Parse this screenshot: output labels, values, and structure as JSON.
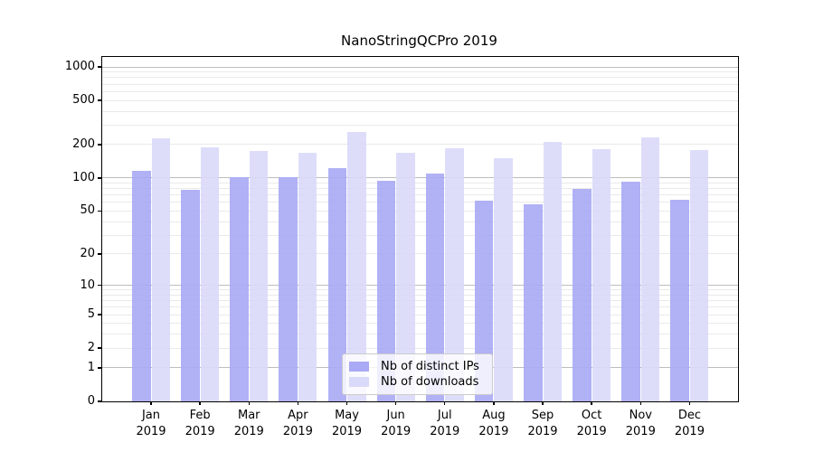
{
  "chart_data": {
    "type": "bar",
    "title": "NanoStringQCPro 2019",
    "categories": [
      "Jan 2019",
      "Feb 2019",
      "Mar 2019",
      "Apr 2019",
      "May 2019",
      "Jun 2019",
      "Jul 2019",
      "Aug 2019",
      "Sep 2019",
      "Oct 2019",
      "Nov 2019",
      "Dec 2019"
    ],
    "series": [
      {
        "name": "Nb of distinct IPs",
        "color": "#a9a9f5",
        "values": [
          115,
          78,
          101,
          101,
          123,
          95,
          110,
          62,
          58,
          80,
          92,
          63
        ]
      },
      {
        "name": "Nb of downloads",
        "color": "#d9d9f9",
        "values": [
          230,
          190,
          175,
          168,
          261,
          169,
          186,
          152,
          213,
          183,
          231,
          180
        ]
      }
    ],
    "yscale": "log10(1+value)",
    "ylim": [
      0,
      1230
    ],
    "yticks": [
      0,
      1,
      2,
      5,
      10,
      20,
      50,
      100,
      200,
      500,
      1000
    ],
    "major_gridlines": [
      1,
      10,
      100,
      1000
    ],
    "minor_gridline_decades": [
      1,
      10,
      100
    ],
    "grid": true,
    "legend_position": "lower center",
    "xlabel": "",
    "ylabel": "",
    "colors": {
      "axis": "#000000",
      "major_grid": "#bdbdbd",
      "minor_grid": "#eaeaea",
      "background": "#ffffff"
    }
  }
}
